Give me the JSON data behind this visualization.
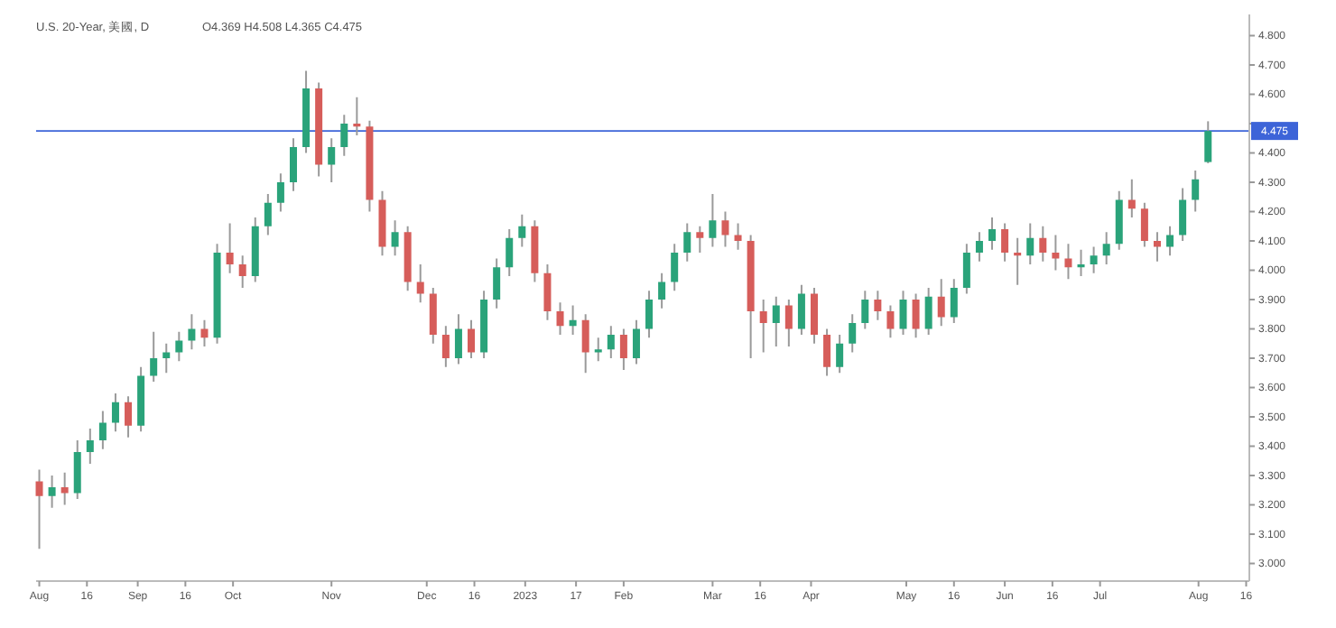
{
  "chart_data": {
    "type": "candlestick",
    "title": "U.S. 20-Year, 美國, D",
    "subtitle": "O4.369  H4.508  L4.365  C4.475",
    "x": [
      "2022-08-01",
      "2022-08-05",
      "2022-08-09",
      "2022-08-13",
      "2022-08-17",
      "2022-08-21",
      "2022-08-25",
      "2022-08-29",
      "2022-09-02",
      "2022-09-06",
      "2022-09-10",
      "2022-09-14",
      "2022-09-18",
      "2022-09-22",
      "2022-09-26",
      "2022-09-30",
      "2022-10-04",
      "2022-10-08",
      "2022-10-12",
      "2022-10-16",
      "2022-10-20",
      "2022-10-24",
      "2022-10-28",
      "2022-11-01",
      "2022-11-05",
      "2022-11-09",
      "2022-11-13",
      "2022-11-17",
      "2022-11-21",
      "2022-11-25",
      "2022-11-29",
      "2022-12-03",
      "2022-12-07",
      "2022-12-11",
      "2022-12-15",
      "2022-12-19",
      "2022-12-23",
      "2022-12-27",
      "2022-12-31",
      "2023-01-04",
      "2023-01-08",
      "2023-01-12",
      "2023-01-16",
      "2023-01-20",
      "2023-01-24",
      "2023-01-28",
      "2023-02-01",
      "2023-02-05",
      "2023-02-09",
      "2023-02-13",
      "2023-02-17",
      "2023-02-21",
      "2023-02-25",
      "2023-03-01",
      "2023-03-05",
      "2023-03-09",
      "2023-03-13",
      "2023-03-17",
      "2023-03-21",
      "2023-03-25",
      "2023-03-29",
      "2023-04-02",
      "2023-04-06",
      "2023-04-10",
      "2023-04-14",
      "2023-04-18",
      "2023-04-22",
      "2023-04-26",
      "2023-04-30",
      "2023-05-04",
      "2023-05-08",
      "2023-05-12",
      "2023-05-16",
      "2023-05-20",
      "2023-05-24",
      "2023-05-28",
      "2023-06-01",
      "2023-06-05",
      "2023-06-09",
      "2023-06-13",
      "2023-06-17",
      "2023-06-21",
      "2023-06-25",
      "2023-06-29",
      "2023-07-03",
      "2023-07-07",
      "2023-07-11",
      "2023-07-15",
      "2023-07-19",
      "2023-07-23",
      "2023-07-27",
      "2023-07-31",
      "2023-08-04"
    ],
    "ohlc": [
      [
        3.28,
        3.32,
        3.05,
        3.23
      ],
      [
        3.23,
        3.3,
        3.19,
        3.26
      ],
      [
        3.26,
        3.31,
        3.2,
        3.24
      ],
      [
        3.24,
        3.42,
        3.22,
        3.38
      ],
      [
        3.38,
        3.46,
        3.34,
        3.42
      ],
      [
        3.42,
        3.52,
        3.39,
        3.48
      ],
      [
        3.48,
        3.58,
        3.45,
        3.55
      ],
      [
        3.55,
        3.57,
        3.43,
        3.47
      ],
      [
        3.47,
        3.67,
        3.45,
        3.64
      ],
      [
        3.64,
        3.79,
        3.62,
        3.7
      ],
      [
        3.7,
        3.75,
        3.65,
        3.72
      ],
      [
        3.72,
        3.79,
        3.69,
        3.76
      ],
      [
        3.76,
        3.85,
        3.73,
        3.8
      ],
      [
        3.8,
        3.83,
        3.74,
        3.77
      ],
      [
        3.77,
        4.09,
        3.75,
        4.06
      ],
      [
        4.06,
        4.16,
        3.99,
        4.02
      ],
      [
        4.02,
        4.05,
        3.94,
        3.98
      ],
      [
        3.98,
        4.18,
        3.96,
        4.15
      ],
      [
        4.15,
        4.26,
        4.12,
        4.23
      ],
      [
        4.23,
        4.33,
        4.2,
        4.3
      ],
      [
        4.3,
        4.45,
        4.27,
        4.42
      ],
      [
        4.42,
        4.68,
        4.4,
        4.62
      ],
      [
        4.62,
        4.64,
        4.32,
        4.36
      ],
      [
        4.36,
        4.45,
        4.3,
        4.42
      ],
      [
        4.42,
        4.53,
        4.39,
        4.5
      ],
      [
        4.5,
        4.59,
        4.46,
        4.49
      ],
      [
        4.49,
        4.51,
        4.2,
        4.24
      ],
      [
        4.24,
        4.27,
        4.05,
        4.08
      ],
      [
        4.08,
        4.17,
        4.05,
        4.13
      ],
      [
        4.13,
        4.15,
        3.93,
        3.96
      ],
      [
        3.96,
        4.02,
        3.89,
        3.92
      ],
      [
        3.92,
        3.94,
        3.75,
        3.78
      ],
      [
        3.78,
        3.81,
        3.67,
        3.7
      ],
      [
        3.7,
        3.85,
        3.68,
        3.8
      ],
      [
        3.8,
        3.83,
        3.7,
        3.72
      ],
      [
        3.72,
        3.93,
        3.7,
        3.9
      ],
      [
        3.9,
        4.04,
        3.87,
        4.01
      ],
      [
        4.01,
        4.14,
        3.98,
        4.11
      ],
      [
        4.11,
        4.19,
        4.08,
        4.15
      ],
      [
        4.15,
        4.17,
        3.96,
        3.99
      ],
      [
        3.99,
        4.02,
        3.83,
        3.86
      ],
      [
        3.86,
        3.89,
        3.78,
        3.81
      ],
      [
        3.81,
        3.88,
        3.78,
        3.83
      ],
      [
        3.83,
        3.85,
        3.65,
        3.72
      ],
      [
        3.72,
        3.77,
        3.69,
        3.73
      ],
      [
        3.73,
        3.81,
        3.7,
        3.78
      ],
      [
        3.78,
        3.8,
        3.66,
        3.7
      ],
      [
        3.7,
        3.83,
        3.68,
        3.8
      ],
      [
        3.8,
        3.93,
        3.77,
        3.9
      ],
      [
        3.9,
        3.99,
        3.87,
        3.96
      ],
      [
        3.96,
        4.09,
        3.93,
        4.06
      ],
      [
        4.06,
        4.16,
        4.03,
        4.13
      ],
      [
        4.13,
        4.15,
        4.06,
        4.11
      ],
      [
        4.11,
        4.26,
        4.08,
        4.17
      ],
      [
        4.17,
        4.2,
        4.08,
        4.12
      ],
      [
        4.12,
        4.16,
        4.07,
        4.1
      ],
      [
        4.1,
        4.12,
        3.7,
        3.86
      ],
      [
        3.86,
        3.9,
        3.72,
        3.82
      ],
      [
        3.82,
        3.91,
        3.74,
        3.88
      ],
      [
        3.88,
        3.9,
        3.74,
        3.8
      ],
      [
        3.8,
        3.95,
        3.78,
        3.92
      ],
      [
        3.92,
        3.94,
        3.75,
        3.78
      ],
      [
        3.78,
        3.8,
        3.64,
        3.67
      ],
      [
        3.67,
        3.78,
        3.65,
        3.75
      ],
      [
        3.75,
        3.85,
        3.72,
        3.82
      ],
      [
        3.82,
        3.93,
        3.8,
        3.9
      ],
      [
        3.9,
        3.93,
        3.83,
        3.86
      ],
      [
        3.86,
        3.88,
        3.77,
        3.8
      ],
      [
        3.8,
        3.93,
        3.78,
        3.9
      ],
      [
        3.9,
        3.92,
        3.77,
        3.8
      ],
      [
        3.8,
        3.94,
        3.78,
        3.91
      ],
      [
        3.91,
        3.97,
        3.81,
        3.84
      ],
      [
        3.84,
        3.97,
        3.82,
        3.94
      ],
      [
        3.94,
        4.09,
        3.92,
        4.06
      ],
      [
        4.06,
        4.13,
        4.03,
        4.1
      ],
      [
        4.1,
        4.18,
        4.07,
        4.14
      ],
      [
        4.14,
        4.16,
        4.03,
        4.06
      ],
      [
        4.06,
        4.11,
        3.95,
        4.05
      ],
      [
        4.05,
        4.16,
        4.02,
        4.11
      ],
      [
        4.11,
        4.15,
        4.03,
        4.06
      ],
      [
        4.06,
        4.12,
        4.0,
        4.04
      ],
      [
        4.04,
        4.09,
        3.97,
        4.01
      ],
      [
        4.01,
        4.07,
        3.98,
        4.02
      ],
      [
        4.02,
        4.08,
        3.99,
        4.05
      ],
      [
        4.05,
        4.13,
        4.02,
        4.09
      ],
      [
        4.09,
        4.27,
        4.07,
        4.24
      ],
      [
        4.24,
        4.31,
        4.18,
        4.21
      ],
      [
        4.21,
        4.23,
        4.08,
        4.1
      ],
      [
        4.1,
        4.13,
        4.03,
        4.08
      ],
      [
        4.08,
        4.15,
        4.05,
        4.12
      ],
      [
        4.12,
        4.28,
        4.1,
        4.24
      ],
      [
        4.24,
        4.34,
        4.2,
        4.31
      ],
      [
        4.369,
        4.508,
        4.365,
        4.475
      ]
    ],
    "colors": [
      "#d65d5a",
      "#2aa37a",
      "#d65d5a",
      "#2aa37a",
      "#2aa37a",
      "#2aa37a",
      "#2aa37a",
      "#d65d5a",
      "#2aa37a",
      "#2aa37a",
      "#2aa37a",
      "#2aa37a",
      "#2aa37a",
      "#d65d5a",
      "#2aa37a",
      "#d65d5a",
      "#d65d5a",
      "#2aa37a",
      "#2aa37a",
      "#2aa37a",
      "#2aa37a",
      "#2aa37a",
      "#d65d5a",
      "#2aa37a",
      "#2aa37a",
      "#d65d5a",
      "#d65d5a",
      "#d65d5a",
      "#2aa37a",
      "#d65d5a",
      "#d65d5a",
      "#d65d5a",
      "#d65d5a",
      "#2aa37a",
      "#d65d5a",
      "#2aa37a",
      "#2aa37a",
      "#2aa37a",
      "#2aa37a",
      "#d65d5a",
      "#d65d5a",
      "#d65d5a",
      "#2aa37a",
      "#d65d5a",
      "#2aa37a",
      "#2aa37a",
      "#d65d5a",
      "#2aa37a",
      "#2aa37a",
      "#2aa37a",
      "#2aa37a",
      "#2aa37a",
      "#d65d5a",
      "#2aa37a",
      "#d65d5a",
      "#d65d5a",
      "#d65d5a",
      "#d65d5a",
      "#2aa37a",
      "#d65d5a",
      "#2aa37a",
      "#d65d5a",
      "#d65d5a",
      "#2aa37a",
      "#2aa37a",
      "#2aa37a",
      "#d65d5a",
      "#d65d5a",
      "#2aa37a",
      "#d65d5a",
      "#2aa37a",
      "#d65d5a",
      "#2aa37a",
      "#2aa37a",
      "#2aa37a",
      "#2aa37a",
      "#d65d5a",
      "#d65d5a",
      "#2aa37a",
      "#d65d5a",
      "#d65d5a",
      "#d65d5a",
      "#2aa37a",
      "#2aa37a",
      "#2aa37a",
      "#2aa37a",
      "#d65d5a",
      "#d65d5a",
      "#d65d5a",
      "#2aa37a",
      "#2aa37a",
      "#2aa37a",
      "#2aa37a"
    ],
    "xlim": [
      "2022-07-31",
      "2023-08-17"
    ],
    "xticks": [
      {
        "value": "2022-08-01",
        "label": "Aug"
      },
      {
        "value": "2022-08-16",
        "label": "16"
      },
      {
        "value": "2022-09-01",
        "label": "Sep"
      },
      {
        "value": "2022-09-16",
        "label": "16"
      },
      {
        "value": "2022-10-01",
        "label": "Oct"
      },
      {
        "value": "2022-11-01",
        "label": "Nov"
      },
      {
        "value": "2022-12-01",
        "label": "Dec"
      },
      {
        "value": "2022-12-16",
        "label": "16"
      },
      {
        "value": "2023-01-01",
        "label": "2023"
      },
      {
        "value": "2023-01-17",
        "label": "17"
      },
      {
        "value": "2023-02-01",
        "label": "Feb"
      },
      {
        "value": "2023-03-01",
        "label": "Mar"
      },
      {
        "value": "2023-03-16",
        "label": "16"
      },
      {
        "value": "2023-04-01",
        "label": "Apr"
      },
      {
        "value": "2023-05-01",
        "label": "May"
      },
      {
        "value": "2023-05-16",
        "label": "16"
      },
      {
        "value": "2023-06-01",
        "label": "Jun"
      },
      {
        "value": "2023-06-16",
        "label": "16"
      },
      {
        "value": "2023-07-01",
        "label": "Jul"
      },
      {
        "value": "2023-08-01",
        "label": "Aug"
      },
      {
        "value": "2023-08-16",
        "label": "16"
      }
    ],
    "ylim": [
      2.94,
      4.86
    ],
    "yticks": [
      {
        "value": 3.0,
        "label": "3.000"
      },
      {
        "value": 3.1,
        "label": "3.100"
      },
      {
        "value": 3.2,
        "label": "3.200"
      },
      {
        "value": 3.3,
        "label": "3.300"
      },
      {
        "value": 3.4,
        "label": "3.400"
      },
      {
        "value": 3.5,
        "label": "3.500"
      },
      {
        "value": 3.6,
        "label": "3.600"
      },
      {
        "value": 3.7,
        "label": "3.700"
      },
      {
        "value": 3.8,
        "label": "3.800"
      },
      {
        "value": 3.9,
        "label": "3.900"
      },
      {
        "value": 4.0,
        "label": "4.000"
      },
      {
        "value": 4.1,
        "label": "4.100"
      },
      {
        "value": 4.2,
        "label": "4.200"
      },
      {
        "value": 4.3,
        "label": "4.300"
      },
      {
        "value": 4.4,
        "label": "4.400"
      },
      {
        "value": 4.5,
        "label": null
      },
      {
        "value": 4.6,
        "label": "4.600"
      },
      {
        "value": 4.7,
        "label": "4.700"
      },
      {
        "value": 4.8,
        "label": "4.800"
      }
    ],
    "ref_lines": [
      {
        "axis": "y",
        "value": 4.475,
        "label": "4.475",
        "color": "#3d64d8"
      }
    ]
  }
}
